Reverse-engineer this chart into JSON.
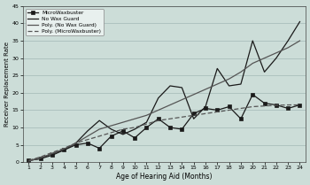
{
  "months": [
    1,
    2,
    3,
    4,
    5,
    6,
    7,
    8,
    9,
    10,
    11,
    12,
    13,
    14,
    15,
    16,
    17,
    18,
    19,
    20,
    21,
    22,
    23,
    24
  ],
  "microwaxbuster": [
    0.5,
    1.0,
    2.0,
    3.5,
    5.0,
    5.5,
    4.0,
    7.5,
    9.0,
    7.0,
    10.0,
    12.5,
    10.0,
    9.5,
    14.0,
    15.5,
    15.0,
    16.0,
    12.5,
    19.5,
    17.0,
    16.5,
    15.5,
    16.5
  ],
  "no_wax_guard": [
    0.5,
    1.0,
    2.5,
    3.5,
    5.5,
    9.0,
    12.0,
    9.5,
    8.0,
    9.5,
    11.5,
    18.5,
    22.0,
    21.5,
    12.5,
    16.0,
    27.0,
    22.0,
    22.5,
    35.0,
    26.0,
    30.0,
    35.0,
    40.5
  ],
  "poly_no_wax_guard": [
    0.3,
    1.2,
    2.5,
    3.8,
    5.5,
    7.5,
    9.5,
    10.5,
    11.5,
    12.5,
    13.5,
    15.0,
    16.5,
    18.0,
    19.5,
    21.0,
    22.5,
    24.0,
    26.0,
    28.5,
    30.0,
    31.5,
    33.0,
    35.0
  ],
  "poly_microwaxbuster": [
    0.5,
    1.5,
    2.8,
    4.0,
    5.5,
    6.5,
    7.5,
    8.5,
    9.5,
    10.0,
    11.0,
    12.0,
    12.5,
    13.0,
    13.5,
    14.0,
    14.5,
    15.0,
    15.5,
    16.0,
    16.2,
    16.4,
    16.5,
    16.5
  ],
  "ylabel": "Receiver Replacement Rate",
  "xlabel": "Age of Hearing Aid (Months)",
  "ylim": [
    0,
    45
  ],
  "yticks": [
    0,
    5,
    10,
    15,
    20,
    25,
    30,
    35,
    40,
    45
  ],
  "bg_color": "#ccddd8",
  "line_color_dark": "#1a1a1a",
  "grid_color": "#b8ceca",
  "legend_labels": [
    "MicroWaxbuster",
    "No Wax Guard",
    "Poly. (No Wax Guard)",
    "Poly. (MicroWaxbuster)"
  ]
}
